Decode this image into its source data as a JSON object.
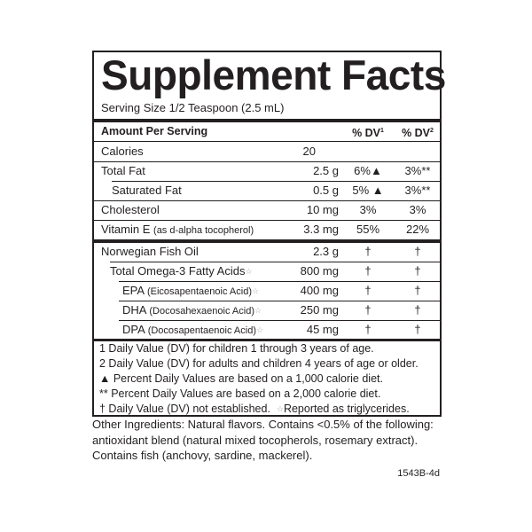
{
  "title": "Supplement Facts",
  "serving_size": "Serving Size 1/2 Teaspoon (2.5 mL)",
  "header": {
    "amount": "Amount Per Serving",
    "dv1": "% DV",
    "dv1_sup": "1",
    "dv2": "% DV",
    "dv2_sup": "2"
  },
  "rows": [
    {
      "name": "Calories",
      "amount": "20",
      "dv1": "",
      "dv2": ""
    },
    {
      "name": "Total Fat",
      "amount": "2.5 g",
      "dv1": "6%▲",
      "dv2": "3%**"
    },
    {
      "name": "Saturated Fat",
      "amount": "0.5 g",
      "dv1": "5% ▲",
      "dv2": "3%**"
    },
    {
      "name": "Cholesterol",
      "amount": "10 mg",
      "dv1": "3%",
      "dv2": "3%"
    },
    {
      "name": "Vitamin E",
      "qualifier": "(as d-alpha tocopherol)",
      "amount": "3.3 mg",
      "dv1": "55%",
      "dv2": "22%"
    },
    {
      "name": "Norwegian Fish Oil",
      "amount": "2.3 g",
      "dv1": "†",
      "dv2": "†"
    },
    {
      "name": "Total Omega-3 Fatty Acids",
      "mark": "☆",
      "amount": "800 mg",
      "dv1": "†",
      "dv2": "†"
    },
    {
      "name": "EPA",
      "qualifier": "(Eicosapentaenoic Acid)",
      "mark": "☆",
      "amount": "400 mg",
      "dv1": "†",
      "dv2": "†"
    },
    {
      "name": "DHA",
      "qualifier": "(Docosahexaenoic Acid)",
      "mark": "☆",
      "amount": "250 mg",
      "dv1": "†",
      "dv2": "†"
    },
    {
      "name": "DPA",
      "qualifier": "(Docosapentaenoic Acid)",
      "mark": "☆",
      "amount": "45 mg",
      "dv1": "†",
      "dv2": "†"
    }
  ],
  "footnotes": [
    "1 Daily Value (DV) for children 1 through 3 years of age.",
    "2 Daily Value (DV) for adults and children 4 years of age or older.",
    "▲ Percent Daily Values are based on a 1,000 calorie diet.",
    "** Percent Daily Values are based on a 2,000 calorie diet.",
    "† Daily Value (DV) not established.",
    "☆",
    "Reported as triglycerides."
  ],
  "other_ingredients": "Other Ingredients: Natural flavors. Contains <0.5% of the following: antioxidant blend (natural mixed tocopherols, rosemary extract). Contains fish (anchovy, sardine, mackerel).",
  "code": "1543B-4d"
}
